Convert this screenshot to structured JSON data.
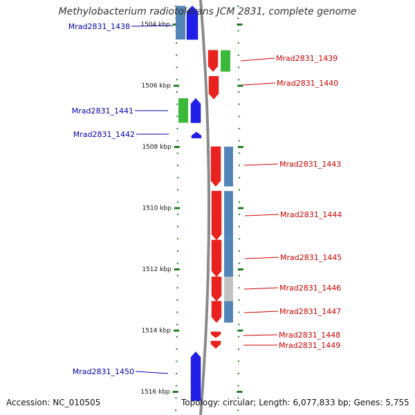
{
  "title": "Methylobacterium radiotolerans JCM 2831, complete genome",
  "footer": {
    "accession": "Accession: NC_010505",
    "topology": "Topology: circular; Length: 6,077,833 bp; Genes: 5,755"
  },
  "colors": {
    "forward_cds": "#e8231f",
    "reverse_cds": "#1f1fe8",
    "rna_green": "#2fb52f",
    "steelblue_track": "#4a7fb3",
    "grey_track": "#c0c0c0",
    "ticks": "#1f7a1f",
    "backbone": "#8a8a8a",
    "label_red": "#cc0000",
    "label_blue": "#0000aa"
  },
  "chart_data": {
    "type": "genome-map",
    "axis": {
      "unit": "kbp",
      "ticks": [
        {
          "kbp": 1504,
          "label": "1504 kbp"
        },
        {
          "kbp": 1506,
          "label": "1506 kbp"
        },
        {
          "kbp": 1508,
          "label": "1508 kbp"
        },
        {
          "kbp": 1510,
          "label": "1510 kbp"
        },
        {
          "kbp": 1512,
          "label": "1512 kbp"
        },
        {
          "kbp": 1514,
          "label": "1514 kbp"
        },
        {
          "kbp": 1516,
          "label": "1516 kbp"
        }
      ]
    },
    "genes": [
      {
        "name": "Mrad2831_1438",
        "strand": "-",
        "start_kbp": 1503.4,
        "end_kbp": 1504.5
      },
      {
        "name": "Mrad2831_1439",
        "strand": "+",
        "start_kbp": 1504.85,
        "end_kbp": 1505.55
      },
      {
        "name": "Mrad2831_1440",
        "strand": "+",
        "start_kbp": 1505.7,
        "end_kbp": 1506.45
      },
      {
        "name": "Mrad2831_1441",
        "strand": "-",
        "start_kbp": 1506.42,
        "end_kbp": 1507.22
      },
      {
        "name": "Mrad2831_1442",
        "strand": "-",
        "start_kbp": 1507.52,
        "end_kbp": 1507.72
      },
      {
        "name": "Mrad2831_1443",
        "strand": "+",
        "start_kbp": 1508.0,
        "end_kbp": 1509.3
      },
      {
        "name": "Mrad2831_1444",
        "strand": "+",
        "start_kbp": 1509.45,
        "end_kbp": 1511.05
      },
      {
        "name": "Mrad2831_1445",
        "strand": "+",
        "start_kbp": 1511.05,
        "end_kbp": 1512.25
      },
      {
        "name": "Mrad2831_1446",
        "strand": "+",
        "start_kbp": 1512.25,
        "end_kbp": 1513.05
      },
      {
        "name": "Mrad2831_1447",
        "strand": "+",
        "start_kbp": 1513.05,
        "end_kbp": 1513.75
      },
      {
        "name": "Mrad2831_1448",
        "strand": "+",
        "start_kbp": 1514.05,
        "end_kbp": 1514.25
      },
      {
        "name": "Mrad2831_1449",
        "strand": "+",
        "start_kbp": 1514.35,
        "end_kbp": 1514.6
      },
      {
        "name": "Mrad2831_1450",
        "strand": "-",
        "start_kbp": 1514.7,
        "end_kbp": 1516.3
      }
    ]
  }
}
